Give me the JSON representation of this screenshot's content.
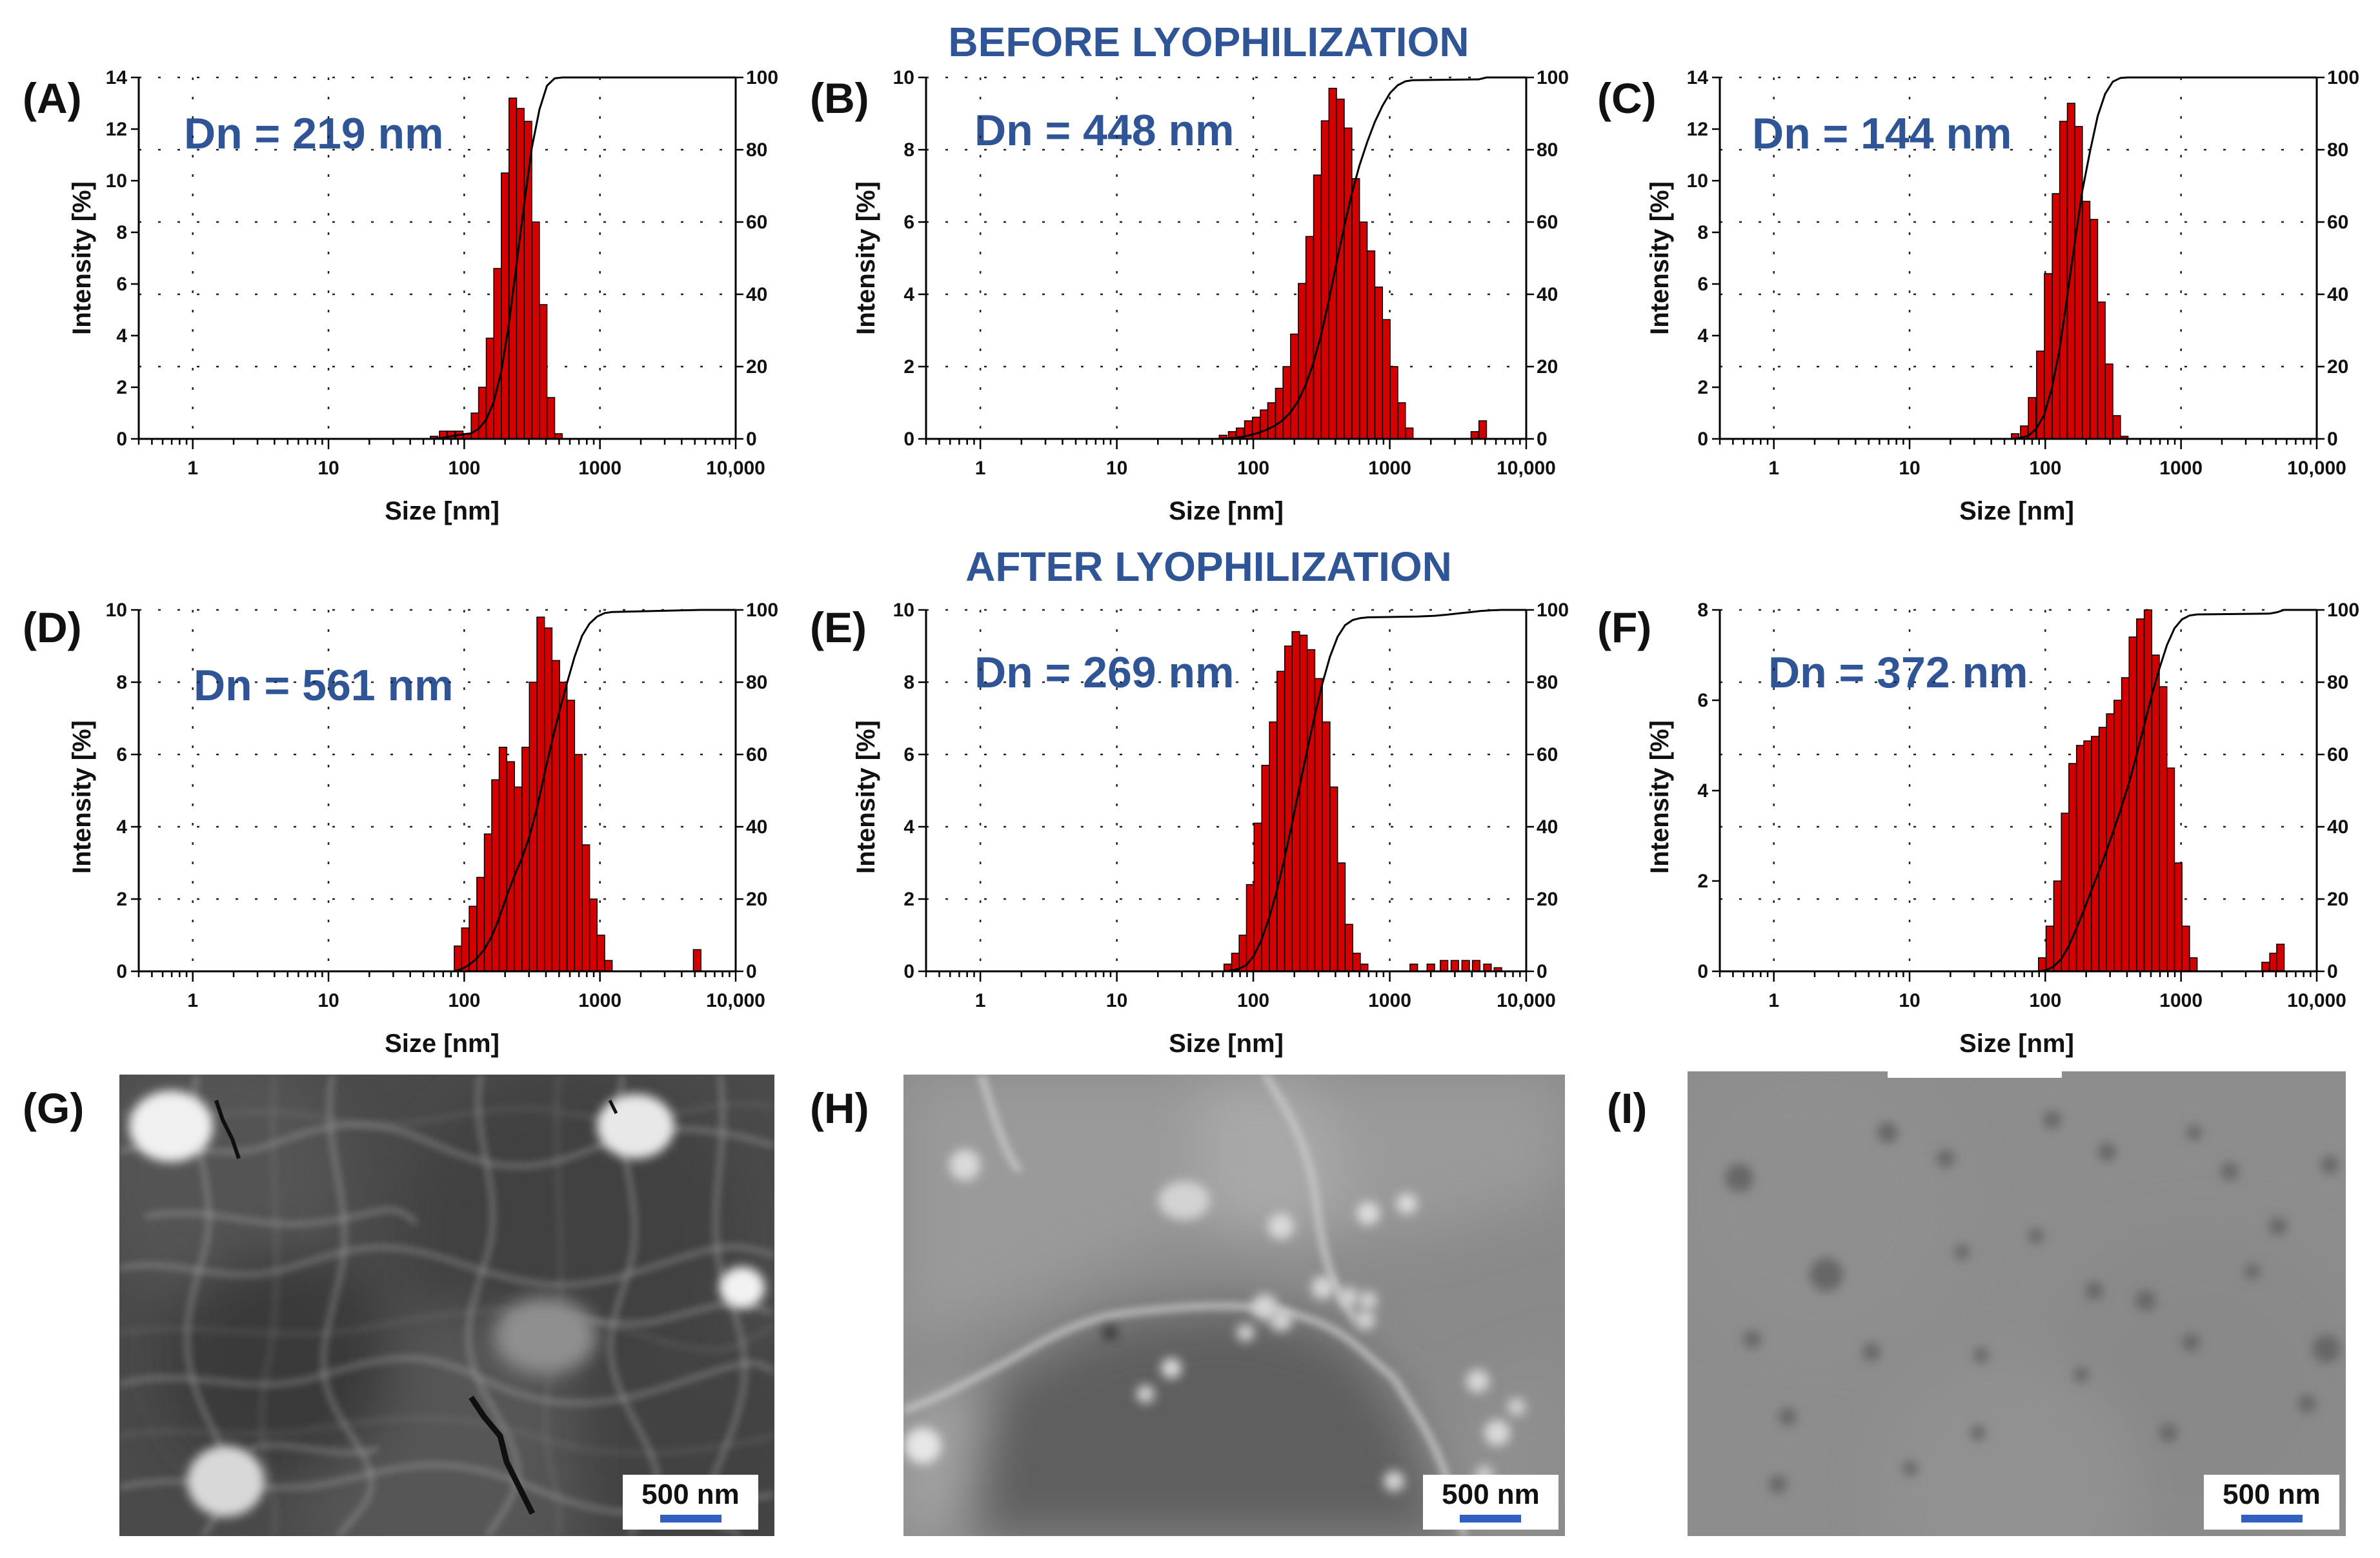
{
  "headers": {
    "before": "BEFORE LYOPHILIZATION",
    "after": "AFTER LYOPHILIZATION"
  },
  "colors": {
    "bar": "#d40000",
    "title": "#2f5597",
    "scalebar": "#3060c0"
  },
  "chart_data": [
    {
      "type": "bar",
      "panel": "(A)",
      "dn": "Dn = 219 nm",
      "ylabel": "Intensity [%]",
      "xlabel": "Size [nm]",
      "ylim": [
        0,
        14
      ],
      "yticks": [
        "0",
        "2",
        "4",
        "6",
        "8",
        "10",
        "12",
        "14"
      ],
      "y2ticks": [
        "0",
        "20",
        "40",
        "60",
        "80",
        "100"
      ],
      "xticks": [
        "1",
        "10",
        "100",
        "1000",
        "10,000"
      ],
      "bins": [
        [
          60,
          0.1
        ],
        [
          70,
          0.3
        ],
        [
          80,
          0.3
        ],
        [
          92,
          0.3
        ],
        [
          105,
          0.2
        ],
        [
          120,
          1.0
        ],
        [
          136,
          2.0
        ],
        [
          155,
          3.9
        ],
        [
          176,
          6.6
        ],
        [
          200,
          10.3
        ],
        [
          228,
          13.2
        ],
        [
          259,
          12.8
        ],
        [
          295,
          12.3
        ],
        [
          336,
          8.4
        ],
        [
          382,
          5.2
        ],
        [
          435,
          1.6
        ],
        [
          495,
          0.2
        ]
      ]
    },
    {
      "type": "bar",
      "panel": "(B)",
      "dn": "Dn = 448 nm",
      "ylabel": "Intensity [%]",
      "xlabel": "Size [nm]",
      "ylim": [
        0,
        10
      ],
      "yticks": [
        "0",
        "2",
        "4",
        "6",
        "8",
        "10"
      ],
      "y2ticks": [
        "0",
        "20",
        "40",
        "60",
        "80",
        "100"
      ],
      "xticks": [
        "1",
        "10",
        "100",
        "1000",
        "10,000"
      ],
      "bins": [
        [
          60,
          0.1
        ],
        [
          70,
          0.2
        ],
        [
          80,
          0.3
        ],
        [
          92,
          0.5
        ],
        [
          105,
          0.6
        ],
        [
          120,
          0.8
        ],
        [
          136,
          1.0
        ],
        [
          155,
          1.4
        ],
        [
          176,
          2.0
        ],
        [
          200,
          2.9
        ],
        [
          228,
          4.3
        ],
        [
          259,
          5.6
        ],
        [
          295,
          7.3
        ],
        [
          336,
          8.8
        ],
        [
          382,
          9.7
        ],
        [
          435,
          9.4
        ],
        [
          495,
          8.6
        ],
        [
          563,
          7.2
        ],
        [
          641,
          6.0
        ],
        [
          729,
          5.2
        ],
        [
          830,
          4.2
        ],
        [
          944,
          3.3
        ],
        [
          1074,
          2.0
        ],
        [
          1222,
          1.0
        ],
        [
          1390,
          0.3
        ],
        [
          4200,
          0.2
        ],
        [
          4800,
          0.5
        ]
      ]
    },
    {
      "type": "bar",
      "panel": "(C)",
      "dn": "Dn = 144 nm",
      "ylabel": "Intensity [%]",
      "xlabel": "Size [nm]",
      "ylim": [
        0,
        14
      ],
      "yticks": [
        "0",
        "2",
        "4",
        "6",
        "8",
        "10",
        "12",
        "14"
      ],
      "y2ticks": [
        "0",
        "20",
        "40",
        "60",
        "80",
        "100"
      ],
      "xticks": [
        "1",
        "10",
        "100",
        "1000",
        "10,000"
      ],
      "bins": [
        [
          60,
          0.2
        ],
        [
          70,
          0.5
        ],
        [
          80,
          1.6
        ],
        [
          92,
          3.4
        ],
        [
          105,
          6.4
        ],
        [
          120,
          9.5
        ],
        [
          136,
          12.3
        ],
        [
          155,
          13.0
        ],
        [
          176,
          12.1
        ],
        [
          200,
          9.2
        ],
        [
          228,
          8.5
        ],
        [
          259,
          5.3
        ],
        [
          295,
          2.9
        ],
        [
          336,
          0.9
        ],
        [
          382,
          0.1
        ]
      ]
    },
    {
      "type": "bar",
      "panel": "(D)",
      "dn": "Dn = 561 nm",
      "ylabel": "Intensity [%]",
      "xlabel": "Size [nm]",
      "ylim": [
        0,
        10
      ],
      "yticks": [
        "0",
        "2",
        "4",
        "6",
        "8",
        "10"
      ],
      "y2ticks": [
        "0",
        "20",
        "40",
        "60",
        "80",
        "100"
      ],
      "xticks": [
        "1",
        "10",
        "100",
        "1000",
        "10,000"
      ],
      "bins": [
        [
          90,
          0.7
        ],
        [
          102,
          1.2
        ],
        [
          116,
          1.8
        ],
        [
          132,
          2.6
        ],
        [
          150,
          3.8
        ],
        [
          170,
          5.3
        ],
        [
          193,
          6.2
        ],
        [
          220,
          5.8
        ],
        [
          250,
          5.1
        ],
        [
          284,
          6.2
        ],
        [
          322,
          8.0
        ],
        [
          366,
          9.8
        ],
        [
          416,
          9.5
        ],
        [
          473,
          8.6
        ],
        [
          537,
          8.0
        ],
        [
          610,
          7.5
        ],
        [
          693,
          6.0
        ],
        [
          787,
          3.5
        ],
        [
          894,
          2.0
        ],
        [
          1016,
          1.0
        ],
        [
          1154,
          0.3
        ],
        [
          5200,
          0.6
        ]
      ]
    },
    {
      "type": "bar",
      "panel": "(E)",
      "dn": "Dn = 269 nm",
      "ylabel": "Intensity [%]",
      "xlabel": "Size [nm]",
      "ylim": [
        0,
        10
      ],
      "yticks": [
        "0",
        "2",
        "4",
        "6",
        "8",
        "10"
      ],
      "y2ticks": [
        "0",
        "20",
        "40",
        "60",
        "80",
        "100"
      ],
      "xticks": [
        "1",
        "10",
        "100",
        "1000",
        "10,000"
      ],
      "bins": [
        [
          65,
          0.2
        ],
        [
          74,
          0.5
        ],
        [
          84,
          1.0
        ],
        [
          95,
          2.4
        ],
        [
          108,
          4.1
        ],
        [
          123,
          5.7
        ],
        [
          140,
          6.9
        ],
        [
          159,
          8.3
        ],
        [
          181,
          9.0
        ],
        [
          205,
          9.4
        ],
        [
          233,
          9.3
        ],
        [
          265,
          8.9
        ],
        [
          301,
          8.1
        ],
        [
          342,
          6.9
        ],
        [
          389,
          5.1
        ],
        [
          442,
          3.0
        ],
        [
          502,
          1.3
        ],
        [
          571,
          0.5
        ],
        [
          649,
          0.2
        ],
        [
          1500,
          0.2
        ],
        [
          2000,
          0.2
        ],
        [
          2500,
          0.3
        ],
        [
          3000,
          0.3
        ],
        [
          3600,
          0.3
        ],
        [
          4300,
          0.3
        ],
        [
          5200,
          0.2
        ],
        [
          6200,
          0.1
        ]
      ]
    },
    {
      "type": "bar",
      "panel": "(F)",
      "dn": "Dn = 372 nm",
      "ylabel": "Intensity [%]",
      "xlabel": "Size [nm]",
      "ylim": [
        0,
        8
      ],
      "yticks": [
        "0",
        "2",
        "4",
        "6",
        "8"
      ],
      "y2ticks": [
        "0",
        "20",
        "40",
        "60",
        "80",
        "100"
      ],
      "xticks": [
        "1",
        "10",
        "100",
        "1000",
        "10,000"
      ],
      "bins": [
        [
          95,
          0.3
        ],
        [
          108,
          1.0
        ],
        [
          123,
          2.0
        ],
        [
          140,
          3.5
        ],
        [
          159,
          4.6
        ],
        [
          181,
          5.0
        ],
        [
          205,
          5.1
        ],
        [
          233,
          5.2
        ],
        [
          265,
          5.4
        ],
        [
          301,
          5.7
        ],
        [
          342,
          6.0
        ],
        [
          389,
          6.5
        ],
        [
          442,
          7.4
        ],
        [
          502,
          7.8
        ],
        [
          571,
          8.0
        ],
        [
          649,
          7.0
        ],
        [
          738,
          6.3
        ],
        [
          839,
          4.5
        ],
        [
          954,
          2.4
        ],
        [
          1084,
          1.0
        ],
        [
          1233,
          0.3
        ],
        [
          4200,
          0.2
        ],
        [
          4800,
          0.4
        ],
        [
          5400,
          0.6
        ]
      ]
    }
  ],
  "micrographs": [
    {
      "panel": "(G)",
      "scalebar": "500 nm"
    },
    {
      "panel": "(H)",
      "scalebar": "500 nm"
    },
    {
      "panel": "(I)",
      "scalebar": "500 nm"
    }
  ]
}
